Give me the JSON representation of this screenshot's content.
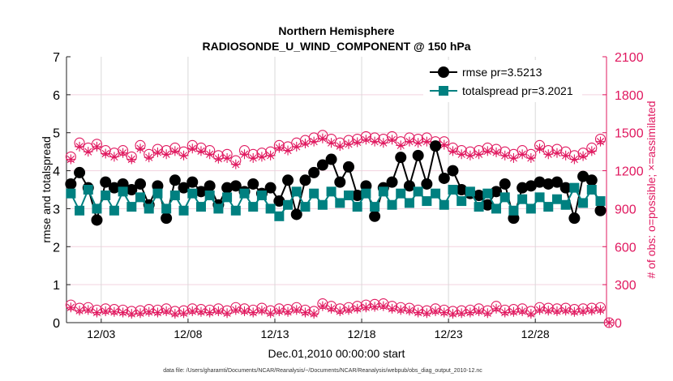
{
  "chart_data": {
    "type": "line",
    "title": [
      "Northern Hemisphere",
      "RADIOSONDE_U_WIND_COMPONENT @ 150 hPa"
    ],
    "xlabel": "Dec.01,2010 00:00:00 start",
    "ylabel_left": "rmse and totalspread",
    "ylabel_right": "# of obs: o=possible; ×=assimilated",
    "ylim_left": [
      0,
      7
    ],
    "ylim_right": [
      0,
      2100
    ],
    "yticks_left": [
      "0",
      "1",
      "2",
      "3",
      "4",
      "5",
      "6",
      "7"
    ],
    "yticks_right": [
      "0",
      "300",
      "600",
      "900",
      "1200",
      "1500",
      "1800",
      "2100"
    ],
    "xticks": [
      "12/03",
      "12/08",
      "12/13",
      "12/18",
      "12/23",
      "12/28"
    ],
    "x_first": "2010-12-01 06:00",
    "x_interval_hours": 12,
    "grid": true,
    "legend_position": "top-right",
    "colors": {
      "rmse": "#000000",
      "totalspread": "#008080",
      "obs": "#e0185f",
      "grid": "#f3d3df"
    },
    "series": [
      {
        "name": "rmse pr=3.5213",
        "axis": "left",
        "values": [
          3.65,
          3.95,
          3.55,
          2.7,
          3.7,
          3.55,
          3.65,
          3.5,
          3.65,
          3.1,
          3.6,
          2.75,
          3.75,
          3.55,
          3.7,
          3.45,
          3.6,
          3.1,
          3.55,
          3.6,
          3.45,
          3.65,
          3.4,
          3.55,
          3.2,
          3.75,
          2.85,
          3.75,
          3.95,
          4.15,
          4.3,
          3.7,
          4.1,
          3.35,
          3.6,
          2.8,
          3.55,
          3.7,
          4.35,
          3.6,
          4.4,
          3.65,
          4.65,
          3.8,
          4.0,
          3.5,
          3.4,
          3.35,
          3.1,
          3.45,
          3.65,
          2.75,
          3.55,
          3.6,
          3.7,
          3.65,
          3.7,
          3.55,
          2.75,
          3.85,
          3.75,
          2.95,
          null
        ]
      },
      {
        "name": "totalspread pr=3.2021",
        "axis": "left",
        "values": [
          3.4,
          2.95,
          3.5,
          3.0,
          3.35,
          2.95,
          3.45,
          3.05,
          3.3,
          3.0,
          3.4,
          3.0,
          3.35,
          2.95,
          3.4,
          3.05,
          3.35,
          3.0,
          3.3,
          2.95,
          3.4,
          3.05,
          3.35,
          3.0,
          2.8,
          3.1,
          3.45,
          3.05,
          3.4,
          3.1,
          3.45,
          3.15,
          3.35,
          3.05,
          3.4,
          3.05,
          3.45,
          3.1,
          3.4,
          3.15,
          3.45,
          3.2,
          3.4,
          3.1,
          3.5,
          3.2,
          3.45,
          3.05,
          3.4,
          3.0,
          3.3,
          2.95,
          3.25,
          3.0,
          3.3,
          3.05,
          3.25,
          3.1,
          3.55,
          3.15,
          3.5,
          3.2,
          null
        ]
      },
      {
        "name": "possible",
        "axis": "right",
        "values": [
          1310,
          1420,
          1380,
          1410,
          1360,
          1340,
          1360,
          1310,
          1400,
          1330,
          1370,
          1360,
          1380,
          1350,
          1400,
          1380,
          1360,
          1320,
          1330,
          1280,
          1360,
          1330,
          1340,
          1350,
          1400,
          1390,
          1420,
          1440,
          1460,
          1480,
          1450,
          1420,
          1440,
          1450,
          1470,
          1460,
          1450,
          1470,
          1430,
          1460,
          1450,
          1460,
          1430,
          1430,
          1380,
          1360,
          1350,
          1360,
          1380,
          1370,
          1350,
          1330,
          1360,
          1330,
          1400,
          1360,
          1370,
          1350,
          1320,
          1340,
          1380,
          1450,
          null
        ]
      },
      {
        "name": "assimilated",
        "axis": "right",
        "values": [
          1290,
          1390,
          1350,
          1390,
          1335,
          1310,
          1340,
          1290,
          1375,
          1305,
          1345,
          1330,
          1355,
          1320,
          1375,
          1355,
          1330,
          1295,
          1300,
          1250,
          1330,
          1300,
          1310,
          1320,
          1380,
          1360,
          1390,
          1415,
          1430,
          1455,
          1420,
          1395,
          1410,
          1425,
          1445,
          1430,
          1420,
          1445,
          1400,
          1430,
          1420,
          1430,
          1400,
          1405,
          1355,
          1330,
          1320,
          1330,
          1355,
          1345,
          1320,
          1300,
          1330,
          1300,
          1375,
          1330,
          1340,
          1320,
          1290,
          1315,
          1355,
          1430,
          null
        ]
      },
      {
        "name": "possible",
        "axis": "right",
        "values": [
          140,
          115,
          120,
          100,
          110,
          105,
          100,
          90,
          95,
          105,
          100,
          110,
          90,
          95,
          110,
          105,
          100,
          110,
          95,
          120,
          110,
          100,
          115,
          95,
          110,
          105,
          120,
          100,
          90,
          150,
          130,
          110,
          120,
          130,
          140,
          145,
          150,
          130,
          120,
          115,
          100,
          95,
          110,
          100,
          90,
          95,
          100,
          110,
          95,
          130,
          100,
          105,
          110,
          90,
          120,
          115,
          110,
          115,
          105,
          110,
          115,
          120,
          0
        ]
      },
      {
        "name": "assimilated",
        "axis": "right",
        "values": [
          120,
          95,
          100,
          80,
          90,
          85,
          80,
          70,
          75,
          85,
          80,
          90,
          70,
          75,
          90,
          85,
          80,
          90,
          75,
          100,
          90,
          80,
          95,
          75,
          90,
          85,
          100,
          80,
          70,
          130,
          110,
          90,
          100,
          110,
          120,
          125,
          130,
          110,
          100,
          95,
          80,
          75,
          90,
          80,
          70,
          75,
          80,
          90,
          75,
          110,
          80,
          85,
          90,
          70,
          100,
          95,
          90,
          95,
          85,
          90,
          95,
          100,
          0
        ]
      }
    ],
    "legend": [
      "rmse pr=3.5213",
      "totalspread pr=3.2021"
    ],
    "footnote": "data file: /Users/gharamti/Documents/NCAR/Reanalysis/~/Documents/NCAR/Reanalysis/webpub/obs_diag_output_2010-12.nc"
  }
}
